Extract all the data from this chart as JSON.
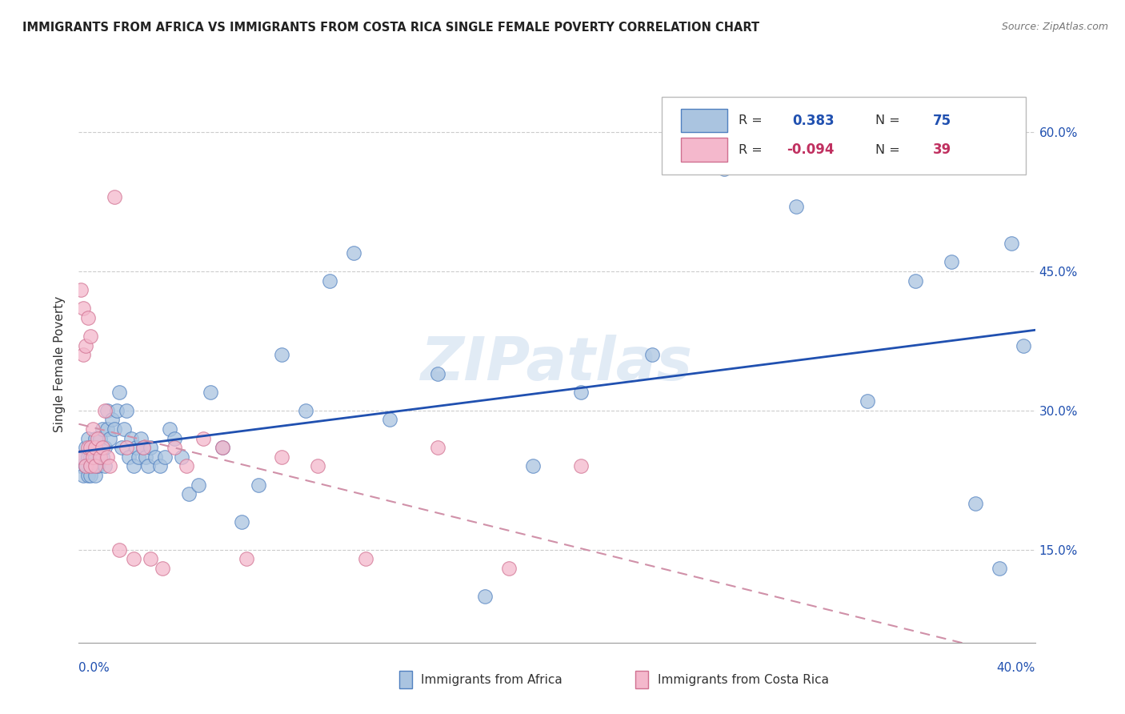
{
  "title": "IMMIGRANTS FROM AFRICA VS IMMIGRANTS FROM COSTA RICA SINGLE FEMALE POVERTY CORRELATION CHART",
  "source": "Source: ZipAtlas.com",
  "ylabel": "Single Female Poverty",
  "y_ticks": [
    0.15,
    0.3,
    0.45,
    0.6
  ],
  "y_tick_labels": [
    "15.0%",
    "30.0%",
    "45.0%",
    "60.0%"
  ],
  "xlim": [
    0.0,
    0.4
  ],
  "ylim": [
    0.05,
    0.65
  ],
  "R_africa": 0.383,
  "N_africa": 75,
  "R_costa_rica": -0.094,
  "N_costa_rica": 39,
  "africa_color": "#aac4e0",
  "costa_rica_color": "#f4b8cc",
  "africa_edge_color": "#5080c0",
  "costa_rica_edge_color": "#d07090",
  "africa_line_color": "#2050b0",
  "costa_rica_line_color": "#d090a8",
  "watermark": "ZIPatlas",
  "legend_africa_label": "Immigrants from Africa",
  "legend_cr_label": "Immigrants from Costa Rica",
  "africa_x": [
    0.001,
    0.002,
    0.002,
    0.003,
    0.003,
    0.004,
    0.004,
    0.004,
    0.005,
    0.005,
    0.005,
    0.006,
    0.006,
    0.007,
    0.007,
    0.007,
    0.008,
    0.008,
    0.009,
    0.009,
    0.01,
    0.01,
    0.011,
    0.011,
    0.012,
    0.012,
    0.013,
    0.014,
    0.015,
    0.016,
    0.017,
    0.018,
    0.019,
    0.02,
    0.021,
    0.022,
    0.023,
    0.024,
    0.025,
    0.026,
    0.027,
    0.028,
    0.029,
    0.03,
    0.032,
    0.034,
    0.036,
    0.038,
    0.04,
    0.043,
    0.046,
    0.05,
    0.055,
    0.06,
    0.068,
    0.075,
    0.085,
    0.095,
    0.105,
    0.115,
    0.13,
    0.15,
    0.17,
    0.19,
    0.21,
    0.24,
    0.27,
    0.3,
    0.33,
    0.35,
    0.365,
    0.375,
    0.385,
    0.39,
    0.395
  ],
  "africa_y": [
    0.24,
    0.25,
    0.23,
    0.24,
    0.26,
    0.25,
    0.23,
    0.27,
    0.24,
    0.25,
    0.23,
    0.26,
    0.24,
    0.25,
    0.27,
    0.23,
    0.26,
    0.24,
    0.27,
    0.25,
    0.28,
    0.25,
    0.26,
    0.24,
    0.28,
    0.3,
    0.27,
    0.29,
    0.28,
    0.3,
    0.32,
    0.26,
    0.28,
    0.3,
    0.25,
    0.27,
    0.24,
    0.26,
    0.25,
    0.27,
    0.26,
    0.25,
    0.24,
    0.26,
    0.25,
    0.24,
    0.25,
    0.28,
    0.27,
    0.25,
    0.21,
    0.22,
    0.32,
    0.26,
    0.18,
    0.22,
    0.36,
    0.3,
    0.44,
    0.47,
    0.29,
    0.34,
    0.1,
    0.24,
    0.32,
    0.36,
    0.56,
    0.52,
    0.31,
    0.44,
    0.46,
    0.2,
    0.13,
    0.48,
    0.37
  ],
  "cr_x": [
    0.001,
    0.001,
    0.002,
    0.002,
    0.003,
    0.003,
    0.004,
    0.004,
    0.005,
    0.005,
    0.005,
    0.006,
    0.006,
    0.007,
    0.007,
    0.008,
    0.009,
    0.01,
    0.011,
    0.012,
    0.013,
    0.015,
    0.017,
    0.02,
    0.023,
    0.027,
    0.03,
    0.035,
    0.04,
    0.045,
    0.052,
    0.06,
    0.07,
    0.085,
    0.1,
    0.12,
    0.15,
    0.18,
    0.21
  ],
  "cr_y": [
    0.25,
    0.43,
    0.36,
    0.41,
    0.24,
    0.37,
    0.26,
    0.4,
    0.24,
    0.26,
    0.38,
    0.25,
    0.28,
    0.26,
    0.24,
    0.27,
    0.25,
    0.26,
    0.3,
    0.25,
    0.24,
    0.53,
    0.15,
    0.26,
    0.14,
    0.26,
    0.14,
    0.13,
    0.26,
    0.24,
    0.27,
    0.26,
    0.14,
    0.25,
    0.24,
    0.14,
    0.26,
    0.13,
    0.24
  ]
}
